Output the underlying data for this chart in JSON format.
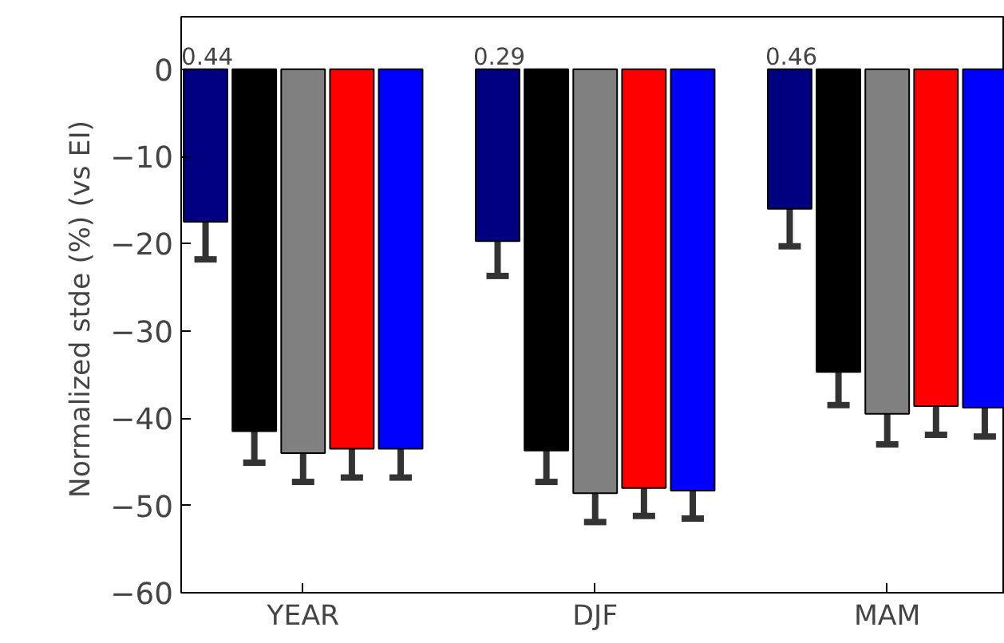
{
  "chart_data": {
    "type": "bar",
    "ylabel": "Normalized stde (%)  (vs EI)",
    "categories": [
      "YEAR",
      "DJF",
      "MAM"
    ],
    "ylim": [
      -60,
      6
    ],
    "yticks": [
      0,
      -10,
      -20,
      -30,
      -40,
      -50,
      -60
    ],
    "series": [
      {
        "color": "#000080",
        "values": [
          -17.5,
          -19.7,
          -16
        ],
        "errors": [
          4.3,
          4,
          4.3
        ]
      },
      {
        "color": "#000000",
        "values": [
          -41.5,
          -43.7,
          -34.7
        ],
        "errors": [
          3.6,
          3.6,
          3.8
        ]
      },
      {
        "color": "#808080",
        "values": [
          -44,
          -48.6,
          -39.5
        ],
        "errors": [
          3.3,
          3.3,
          3.5
        ]
      },
      {
        "color": "#ff0000",
        "values": [
          -43.5,
          -48,
          -38.6
        ],
        "errors": [
          3.3,
          3.2,
          3.3
        ]
      },
      {
        "color": "#0000ff",
        "values": [
          -43.5,
          -48.3,
          -38.8
        ],
        "errors": [
          3.3,
          3.2,
          3.3
        ]
      }
    ],
    "annotations": [
      "0.44",
      "0.29",
      "0.46"
    ],
    "grid": false
  }
}
